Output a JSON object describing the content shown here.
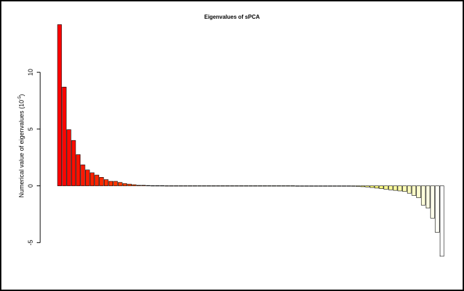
{
  "chart_data": {
    "type": "bar",
    "title": "Eigenvalues of sPCA",
    "ylabel_main": "Numerical value of eigenvalues (10",
    "ylabel_exp": "-5",
    "ylabel_close": ")",
    "xlabel": "",
    "ylim": [
      -8.1,
      14.9
    ],
    "yticks": [
      -5,
      0,
      5,
      10
    ],
    "ytick_labels": [
      "-5",
      "0",
      "5",
      "10"
    ],
    "grid": false,
    "legend": "none",
    "fill_colors": [
      "#FF0000",
      "#FF4000",
      "#FF8000",
      "#FFBF00",
      "#FFFF00",
      "#FFFF80",
      "#FFFFFF"
    ],
    "values": [
      14.2,
      8.7,
      4.95,
      4.0,
      2.75,
      1.85,
      1.4,
      1.15,
      0.95,
      0.75,
      0.55,
      0.4,
      0.4,
      0.3,
      0.2,
      0.15,
      0.1,
      0.05,
      0.05,
      0.03,
      0.02,
      0.02,
      0.02,
      0.01,
      0.01,
      0.01,
      0.01,
      0.01,
      0.01,
      0.01,
      0.01,
      0.01,
      0.01,
      0.01,
      0.01,
      0.01,
      0.01,
      0.01,
      0.01,
      0.01,
      0.01,
      0.01,
      0.01,
      0.01,
      0.01,
      0.01,
      0.01,
      0.01,
      0.01,
      0.01,
      0.01,
      0.0,
      0.0,
      0.0,
      0.0,
      0.0,
      0.0,
      0.0,
      0.0,
      0.0,
      0.0,
      -0.02,
      -0.03,
      -0.04,
      -0.05,
      -0.08,
      -0.1,
      -0.15,
      -0.2,
      -0.25,
      -0.3,
      -0.35,
      -0.4,
      -0.45,
      -0.5,
      -0.65,
      -0.85,
      -1.05,
      -1.7,
      -1.95,
      -2.85,
      -4.1,
      -6.2
    ]
  }
}
